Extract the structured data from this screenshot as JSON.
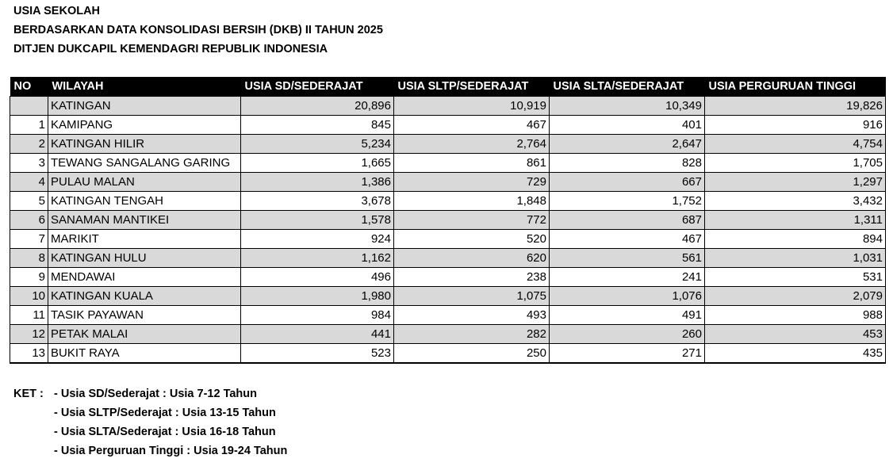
{
  "titles": [
    "USIA SEKOLAH",
    "BERDASARKAN DATA KONSOLIDASI BERSIH (DKB) II TAHUN 2025",
    "DITJEN DUKCAPIL KEMENDAGRI REPUBLIK INDONESIA"
  ],
  "table": {
    "headers": [
      "NO",
      "WILAYAH",
      "USIA SD/SEDERAJAT",
      "USIA SLTP/SEDERAJAT",
      "USIA SLTA/SEDERAJAT",
      "USIA PERGURUAN TINGGI"
    ],
    "rows": [
      [
        "",
        "KATINGAN",
        "20,896",
        "10,919",
        "10,349",
        "19,826"
      ],
      [
        "1",
        "KAMIPANG",
        "845",
        "467",
        "401",
        "916"
      ],
      [
        "2",
        "KATINGAN HILIR",
        "5,234",
        "2,764",
        "2,647",
        "4,754"
      ],
      [
        "3",
        "TEWANG SANGALANG GARING",
        "1,665",
        "861",
        "828",
        "1,705"
      ],
      [
        "4",
        "PULAU MALAN",
        "1,386",
        "729",
        "667",
        "1,297"
      ],
      [
        "5",
        "KATINGAN TENGAH",
        "3,678",
        "1,848",
        "1,752",
        "3,432"
      ],
      [
        "6",
        "SANAMAN MANTIKEI",
        "1,578",
        "772",
        "687",
        "1,311"
      ],
      [
        "7",
        "MARIKIT",
        "924",
        "520",
        "467",
        "894"
      ],
      [
        "8",
        "KATINGAN HULU",
        "1,162",
        "620",
        "561",
        "1,031"
      ],
      [
        "9",
        "MENDAWAI",
        "496",
        "238",
        "241",
        "531"
      ],
      [
        "10",
        "KATINGAN KUALA",
        "1,980",
        "1,075",
        "1,076",
        "2,079"
      ],
      [
        "11",
        "TASIK PAYAWAN",
        "984",
        "493",
        "491",
        "988"
      ],
      [
        "12",
        "PETAK MALAI",
        "441",
        "282",
        "260",
        "453"
      ],
      [
        "13",
        "BUKIT RAYA",
        "523",
        "250",
        "271",
        "435"
      ]
    ]
  },
  "ket": {
    "label": "KET :",
    "items": [
      "- Usia SD/Sederajat : Usia 7-12 Tahun",
      "- Usia SLTP/Sederajat : Usia 13-15 Tahun",
      "- Usia SLTA/Sederajat : Usia 16-18 Tahun",
      "- Usia Perguruan Tinggi : Usia 19-24 Tahun"
    ]
  },
  "colors": {
    "header_bg": "#000000",
    "header_text": "#ffffff",
    "stripe": "#d9d9d9"
  }
}
